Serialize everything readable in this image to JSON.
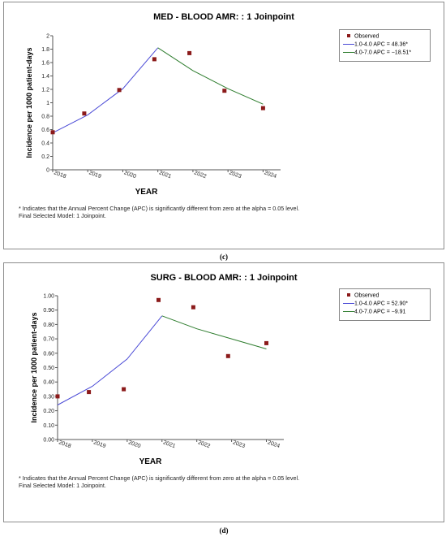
{
  "chart_data": [
    {
      "type": "line",
      "title": "MED - BLOOD AMR: : 1 Joinpoint",
      "xlabel": "YEAR",
      "ylabel": "Incidence per 1000 patient-days",
      "x_ticks": [
        "2018",
        "2019",
        "2020",
        "2021",
        "2022",
        "2023",
        "2024"
      ],
      "y_ticks": [
        "0",
        "0.2",
        "0.4",
        "0.6",
        "0.8",
        "1",
        "1.2",
        "1.4",
        "1.6",
        "1.8",
        "2"
      ],
      "xlim": [
        1,
        7.5
      ],
      "ylim": [
        0,
        2
      ],
      "grid": false,
      "legend_position": "right",
      "observed": {
        "name": "Observed",
        "color": "#8b1a1a",
        "x": [
          1,
          1.9,
          2.9,
          3.9,
          4.9,
          5.9,
          7
        ],
        "y": [
          0.56,
          0.84,
          1.19,
          1.65,
          1.74,
          1.18,
          0.92
        ]
      },
      "series": [
        {
          "name": "1.0-4.0 APC =  48.36*",
          "color": "#4a4ad6",
          "x": [
            1,
            2,
            3,
            4
          ],
          "y": [
            0.55,
            0.82,
            1.21,
            1.82
          ]
        },
        {
          "name": "4.0-7.0 APC = −18.51*",
          "color": "#2e7d2e",
          "x": [
            4,
            5,
            6,
            7
          ],
          "y": [
            1.82,
            1.48,
            1.21,
            0.98
          ]
        }
      ],
      "footnote": [
        "* Indicates that the Annual Percent Change (APC) is significantly different from zero at the alpha = 0.05 level.",
        "Final Selected Model: 1 Joinpoint."
      ],
      "caption": "(c)"
    },
    {
      "type": "line",
      "title": "SURG - BLOOD AMR: : 1 Joinpoint",
      "xlabel": "YEAR",
      "ylabel": "Incidence per 1000 patient-days",
      "x_ticks": [
        "2018",
        "2019",
        "2020",
        "2021",
        "2022",
        "2023",
        "2024"
      ],
      "y_ticks": [
        "0.00",
        "0.10",
        "0.20",
        "0.30",
        "0.40",
        "0.50",
        "0.60",
        "0.70",
        "0.80",
        "0.90",
        "1.00"
      ],
      "xlim": [
        1,
        7.5
      ],
      "ylim": [
        0,
        1
      ],
      "grid": false,
      "legend_position": "right",
      "observed": {
        "name": "Observed",
        "color": "#8b1a1a",
        "x": [
          1,
          1.9,
          2.9,
          3.9,
          4.9,
          5.9,
          7
        ],
        "y": [
          0.3,
          0.33,
          0.35,
          0.97,
          0.92,
          0.58,
          0.67
        ]
      },
      "series": [
        {
          "name": "1.0-4.0 APC = 52.90*",
          "color": "#4a4ad6",
          "x": [
            1,
            2,
            3,
            4
          ],
          "y": [
            0.24,
            0.37,
            0.56,
            0.86
          ]
        },
        {
          "name": "4.0-7.0 APC = −9.91",
          "color": "#2e7d2e",
          "x": [
            4,
            5,
            6,
            7
          ],
          "y": [
            0.86,
            0.77,
            0.7,
            0.63
          ]
        }
      ],
      "footnote": [
        "* Indicates that the Annual Percent Change (APC) is significantly different from zero at the alpha = 0.05 level.",
        "Final Selected Model: 1 Joinpoint."
      ],
      "caption": "(d)"
    }
  ]
}
